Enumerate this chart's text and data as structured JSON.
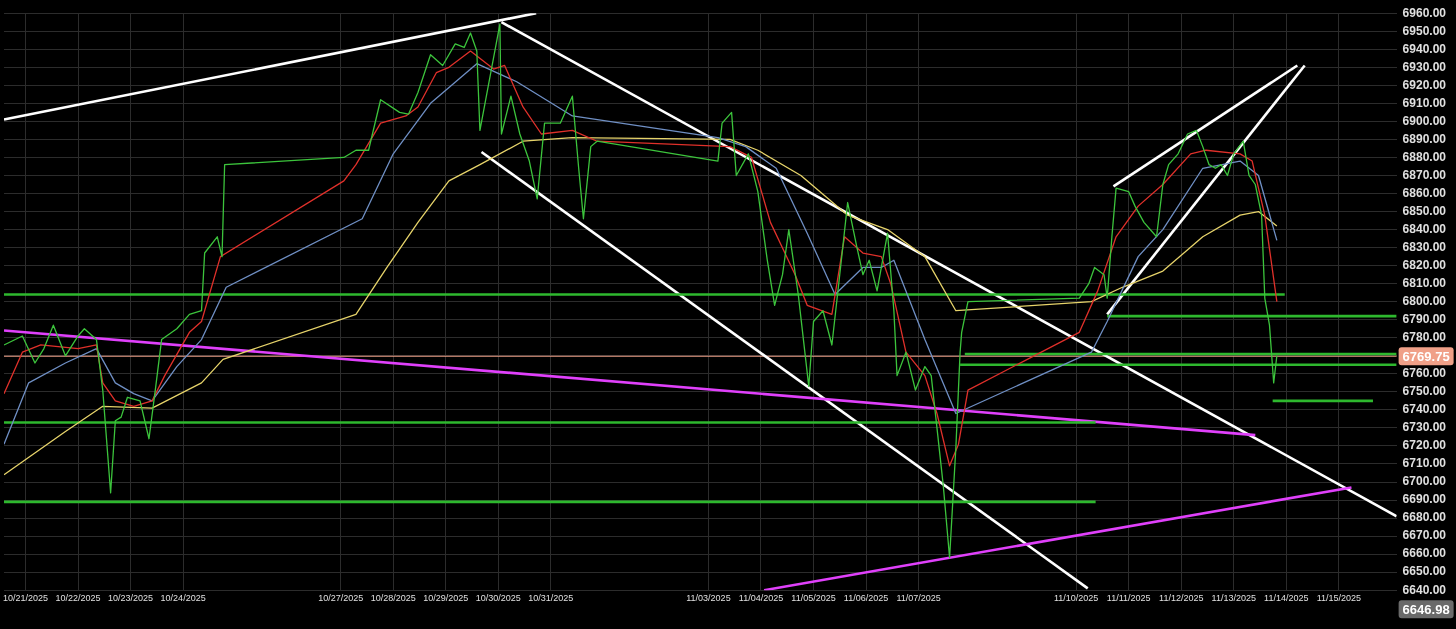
{
  "chart_data": {
    "type": "line",
    "xlim": [
      "2025-10-20T14:10",
      "2025-11-16T02:24"
    ],
    "ylim": [
      6640,
      6960
    ],
    "xticks": [
      {
        "value": "2025-10-21",
        "label": "10/21/2025"
      },
      {
        "value": "2025-10-22",
        "label": "10/22/2025"
      },
      {
        "value": "2025-10-23",
        "label": "10/23/2025"
      },
      {
        "value": "2025-10-24",
        "label": "10/24/2025"
      },
      {
        "value": "2025-10-27",
        "label": "10/27/2025"
      },
      {
        "value": "2025-10-28",
        "label": "10/28/2025"
      },
      {
        "value": "2025-10-29",
        "label": "10/29/2025"
      },
      {
        "value": "2025-10-30",
        "label": "10/30/2025"
      },
      {
        "value": "2025-10-31",
        "label": "10/31/2025"
      },
      {
        "value": "2025-11-03",
        "label": "11/03/2025"
      },
      {
        "value": "2025-11-04",
        "label": "11/04/2025"
      },
      {
        "value": "2025-11-05",
        "label": "11/05/2025"
      },
      {
        "value": "2025-11-06",
        "label": "11/06/2025"
      },
      {
        "value": "2025-11-07",
        "label": "11/07/2025"
      },
      {
        "value": "2025-11-10",
        "label": "11/10/2025"
      },
      {
        "value": "2025-11-11",
        "label": "11/11/2025"
      },
      {
        "value": "2025-11-12",
        "label": "11/12/2025"
      },
      {
        "value": "2025-11-13",
        "label": "11/13/2025"
      },
      {
        "value": "2025-11-14",
        "label": "11/14/2025"
      },
      {
        "value": "2025-11-15",
        "label": "11/15/2025"
      }
    ],
    "yticks": [
      {
        "value": 6640,
        "label": "6640.00"
      },
      {
        "value": 6650,
        "label": "6650.00"
      },
      {
        "value": 6660,
        "label": "6660.00"
      },
      {
        "value": 6670,
        "label": "6670.00"
      },
      {
        "value": 6680,
        "label": "6680.00"
      },
      {
        "value": 6690,
        "label": "6690.00"
      },
      {
        "value": 6700,
        "label": "6700.00"
      },
      {
        "value": 6710,
        "label": "6710.00"
      },
      {
        "value": 6720,
        "label": "6720.00"
      },
      {
        "value": 6730,
        "label": "6730.00"
      },
      {
        "value": 6740,
        "label": "6740.00"
      },
      {
        "value": 6750,
        "label": "6750.00"
      },
      {
        "value": 6760,
        "label": "6760.00"
      },
      {
        "value": 6770,
        "label": null
      },
      {
        "value": 6780,
        "label": "6780.00"
      },
      {
        "value": 6790,
        "label": "6790.00"
      },
      {
        "value": 6800,
        "label": "6800.00"
      },
      {
        "value": 6810,
        "label": "6810.00"
      },
      {
        "value": 6820,
        "label": "6820.00"
      },
      {
        "value": 6830,
        "label": "6830.00"
      },
      {
        "value": 6840,
        "label": "6840.00"
      },
      {
        "value": 6850,
        "label": "6850.00"
      },
      {
        "value": 6860,
        "label": "6860.00"
      },
      {
        "value": 6870,
        "label": "6870.00"
      },
      {
        "value": 6880,
        "label": "6880.00"
      },
      {
        "value": 6890,
        "label": "6890.00"
      },
      {
        "value": 6900,
        "label": "6900.00"
      },
      {
        "value": 6910,
        "label": "6910.00"
      },
      {
        "value": 6920,
        "label": "6920.00"
      },
      {
        "value": 6930,
        "label": "6930.00"
      },
      {
        "value": 6940,
        "label": "6940.00"
      },
      {
        "value": 6950,
        "label": "6950.00"
      },
      {
        "value": 6960,
        "label": "6960.00"
      }
    ],
    "grid": true,
    "marker": "none",
    "line_style": "solid",
    "series": [
      {
        "color": "#ffffff",
        "x": [
          "2025-10-20T14:10",
          "2025-10-30T17:17"
        ],
        "values": [
          6901,
          6960
        ]
      },
      {
        "color": "#ffffff",
        "x": [
          "2025-10-30T01:26",
          "2025-11-16T02:24"
        ],
        "values": [
          6955,
          6681
        ]
      },
      {
        "color": "#ffffff",
        "x": [
          "2025-10-29T16:19",
          "2025-11-10T05:17"
        ],
        "values": [
          6883,
          6641
        ]
      },
      {
        "color": "#ffffff",
        "x": [
          "2025-11-10T14:10",
          "2025-11-14T08:24"
        ],
        "values": [
          6793,
          6931
        ]
      },
      {
        "color": "#ffffff",
        "x": [
          "2025-11-10T17:02",
          "2025-11-14T05:02"
        ],
        "values": [
          6864,
          6931
        ]
      },
      {
        "color": "#e040fb",
        "x": [
          "2025-10-20T14:10",
          "2025-11-13T09:50"
        ],
        "values": [
          6784,
          6726
        ]
      },
      {
        "color": "#e040fb",
        "x": [
          "2025-11-04T01:26",
          "2025-11-15T05:46"
        ],
        "values": [
          6640,
          6697
        ]
      },
      {
        "color": "#2eb82e",
        "x": [
          "2025-10-20T14:10",
          "2025-11-13T23:17"
        ],
        "values": [
          6804,
          6804
        ]
      },
      {
        "color": "#2eb82e",
        "x": [
          "2025-10-20T14:10",
          "2025-11-10T08:53"
        ],
        "values": [
          6733,
          6733
        ]
      },
      {
        "color": "#2eb82e",
        "x": [
          "2025-10-20T14:10",
          "2025-11-10T08:53"
        ],
        "values": [
          6689,
          6689
        ]
      },
      {
        "color": "#2eb82e",
        "x": [
          "2025-11-10T14:10",
          "2025-11-16T02:24"
        ],
        "values": [
          6792,
          6792
        ]
      },
      {
        "color": "#2eb82e",
        "x": [
          "2025-11-07T21:07",
          "2025-11-16T02:24"
        ],
        "values": [
          6771,
          6771
        ]
      },
      {
        "color": "#2eb82e",
        "x": [
          "2025-11-07T18:58",
          "2025-11-16T02:24"
        ],
        "values": [
          6765,
          6765
        ]
      },
      {
        "color": "#2eb82e",
        "x": [
          "2025-11-13T17:46",
          "2025-11-15T15:36"
        ],
        "values": [
          6745,
          6745
        ]
      },
      {
        "color": "#e6d36a",
        "x": [
          "2025-10-20T14:10",
          "2025-10-21T18:14",
          "2025-10-22T11:17",
          "2025-10-23T09:50",
          "2025-10-24T08:24",
          "2025-10-24T18:14",
          "2025-10-27T06:58",
          "2025-10-27T21:07",
          "2025-10-28T11:17",
          "2025-10-29T01:26",
          "2025-10-29T15:36",
          "2025-10-30T11:17",
          "2025-10-31T09:50",
          "2025-11-03T09:50",
          "2025-11-03T22:34",
          "2025-11-04T18:14",
          "2025-11-05T15:36",
          "2025-11-06T09:50",
          "2025-11-07T02:53",
          "2025-11-07T17:02",
          "2025-11-10T06:58",
          "2025-11-10T21:07",
          "2025-11-11T15:36",
          "2025-11-12T09:50",
          "2025-11-13T02:53",
          "2025-11-13T11:17",
          "2025-11-13T19:41"
        ],
        "values": [
          6704,
          6728,
          6742,
          6741,
          6755,
          6768,
          6793,
          6819,
          6844,
          6867,
          6876,
          6889,
          6891,
          6890,
          6884,
          6870,
          6848,
          6840,
          6825,
          6795,
          6800,
          6808,
          6817,
          6836,
          6848,
          6850,
          6842
        ]
      },
      {
        "color": "#6f8fc4",
        "x": [
          "2025-10-20T14:10",
          "2025-10-21T01:26",
          "2025-10-21T18:14",
          "2025-10-22T08:24",
          "2025-10-22T17:02",
          "2025-10-23T01:26",
          "2025-10-23T09:50",
          "2025-10-23T21:07",
          "2025-10-24T08:24",
          "2025-10-24T19:41",
          "2025-10-27T09:50",
          "2025-10-28T00:00",
          "2025-10-28T17:02",
          "2025-10-29T14:10",
          "2025-10-30T08:24",
          "2025-10-31T09:50",
          "2025-11-03T04:19",
          "2025-11-03T17:02",
          "2025-11-04T06:58",
          "2025-11-04T21:07",
          "2025-11-05T09:50",
          "2025-11-05T22:34",
          "2025-11-06T06:58",
          "2025-11-06T12:43",
          "2025-11-07T02:53",
          "2025-11-07T17:02",
          "2025-11-10T06:58",
          "2025-11-10T14:10",
          "2025-11-11T04:19",
          "2025-11-11T15:36",
          "2025-11-12T09:50",
          "2025-11-13T02:53",
          "2025-11-13T11:17",
          "2025-11-13T19:41"
        ],
        "values": [
          6721,
          6755,
          6766,
          6774,
          6755,
          6749,
          6745,
          6764,
          6779,
          6808,
          6846,
          6882,
          6910,
          6932,
          6922,
          6903,
          6891,
          6886,
          6874,
          6838,
          6804,
          6819,
          6819,
          6823,
          6779,
          6738,
          6772,
          6789,
          6825,
          6840,
          6874,
          6878,
          6870,
          6834
        ]
      },
      {
        "color": "#e0302a",
        "x": [
          "2025-10-20T14:10",
          "2025-10-20T22:34",
          "2025-10-21T06:58",
          "2025-10-22T00:00",
          "2025-10-22T08:24",
          "2025-10-22T11:17",
          "2025-10-22T17:02",
          "2025-10-23T01:26",
          "2025-10-23T09:50",
          "2025-10-23T15:36",
          "2025-10-24T02:53",
          "2025-10-24T08:24",
          "2025-10-24T17:02",
          "2025-10-27T01:26",
          "2025-10-27T06:58",
          "2025-10-27T18:14",
          "2025-10-28T05:46",
          "2025-10-28T11:17",
          "2025-10-28T19:41",
          "2025-10-29T01:26",
          "2025-10-29T11:17",
          "2025-10-29T21:50",
          "2025-10-30T02:53",
          "2025-10-30T11:17",
          "2025-10-30T19:41",
          "2025-10-31T09:50",
          "2025-10-31T21:07",
          "2025-11-03T09:50",
          "2025-11-03T19:41",
          "2025-11-04T04:19",
          "2025-11-04T15:36",
          "2025-11-04T21:07",
          "2025-11-05T08:24",
          "2025-11-05T14:10",
          "2025-11-05T22:34",
          "2025-11-06T06:58",
          "2025-11-06T11:17",
          "2025-11-06T18:14",
          "2025-11-07T02:53",
          "2025-11-07T08:24",
          "2025-11-07T14:10",
          "2025-11-07T18:14",
          "2025-11-07T22:34",
          "2025-11-10T01:26",
          "2025-11-10T09:50",
          "2025-11-10T18:14",
          "2025-11-11T04:19",
          "2025-11-11T15:36",
          "2025-11-12T04:19",
          "2025-11-12T11:17",
          "2025-11-13T02:53",
          "2025-11-13T08:24",
          "2025-11-13T14:10",
          "2025-11-13T19:41"
        ],
        "values": [
          6749,
          6772,
          6776,
          6774,
          6776,
          6755,
          6745,
          6742,
          6745,
          6759,
          6783,
          6789,
          6825,
          6867,
          6876,
          6899,
          6903,
          6908,
          6927,
          6930,
          6939,
          6929,
          6931,
          6908,
          6893,
          6895,
          6889,
          6886,
          6880,
          6844,
          6815,
          6798,
          6793,
          6836,
          6827,
          6825,
          6810,
          6772,
          6759,
          6738,
          6709,
          6721,
          6751,
          6783,
          6806,
          6836,
          6853,
          6865,
          6882,
          6884,
          6882,
          6878,
          6848,
          6800
        ]
      },
      {
        "color": "#3cc43c",
        "x": [
          "2025-10-20T14:10",
          "2025-10-20T22:34",
          "2025-10-21T04:19",
          "2025-10-21T08:24",
          "2025-10-21T12:43",
          "2025-10-21T18:14",
          "2025-10-22T00:00",
          "2025-10-22T02:53",
          "2025-10-22T08:24",
          "2025-10-22T11:17",
          "2025-10-22T14:53",
          "2025-10-22T17:02",
          "2025-10-22T19:41",
          "2025-10-22T22:34",
          "2025-10-23T04:19",
          "2025-10-23T08:24",
          "2025-10-23T11:17",
          "2025-10-23T14:10",
          "2025-10-23T21:07",
          "2025-10-24T02:53",
          "2025-10-24T08:24",
          "2025-10-24T09:50",
          "2025-10-24T15:36",
          "2025-10-24T17:46",
          "2025-10-24T18:58",
          "2025-10-27T01:26",
          "2025-10-27T06:58",
          "2025-10-27T12:43",
          "2025-10-27T18:14",
          "2025-10-28T02:53",
          "2025-10-28T06:58",
          "2025-10-28T11:17",
          "2025-10-28T17:02",
          "2025-10-28T22:34",
          "2025-10-29T04:19",
          "2025-10-29T08:24",
          "2025-10-29T11:17",
          "2025-10-29T14:10",
          "2025-10-29T15:36",
          "2025-10-30T00:43",
          "2025-10-30T01:26",
          "2025-10-30T05:46",
          "2025-10-30T09:50",
          "2025-10-30T14:10",
          "2025-10-30T17:46",
          "2025-10-30T21:07",
          "2025-10-31T04:19",
          "2025-10-31T09:50",
          "2025-10-31T12:43",
          "2025-10-31T14:53",
          "2025-10-31T18:14",
          "2025-10-31T21:07",
          "2025-11-03T04:19",
          "2025-11-03T06:14",
          "2025-11-03T10:34",
          "2025-11-03T12:43",
          "2025-11-03T18:14",
          "2025-11-03T22:34",
          "2025-11-04T02:53",
          "2025-11-04T06:14",
          "2025-11-04T09:50",
          "2025-11-04T12:43",
          "2025-11-04T17:02",
          "2025-11-04T21:50",
          "2025-11-05T00:00",
          "2025-11-05T04:19",
          "2025-11-05T08:24",
          "2025-11-05T12:43",
          "2025-11-05T15:36",
          "2025-11-05T19:41",
          "2025-11-05T22:34",
          "2025-11-06T01:26",
          "2025-11-06T05:02",
          "2025-11-06T09:50",
          "2025-11-06T12:43",
          "2025-11-06T14:10",
          "2025-11-06T18:14",
          "2025-11-06T22:34",
          "2025-11-07T02:53",
          "2025-11-07T05:46",
          "2025-11-07T08:24",
          "2025-11-07T11:17",
          "2025-11-07T14:10",
          "2025-11-07T17:02",
          "2025-11-07T18:58",
          "2025-11-07T19:41",
          "2025-11-07T22:34",
          "2025-11-10T01:26",
          "2025-11-10T05:46",
          "2025-11-10T08:24",
          "2025-11-10T12:43",
          "2025-11-10T14:10",
          "2025-11-10T16:19",
          "2025-11-10T18:14",
          "2025-11-11T00:00",
          "2025-11-11T02:53",
          "2025-11-11T06:58",
          "2025-11-11T12:43",
          "2025-11-11T15:36",
          "2025-11-11T18:14",
          "2025-11-11T22:34",
          "2025-11-12T02:53",
          "2025-11-12T06:58",
          "2025-11-12T09:50",
          "2025-11-12T12:43",
          "2025-11-12T15:36",
          "2025-11-12T18:14",
          "2025-11-12T21:07",
          "2025-11-13T00:00",
          "2025-11-13T04:19",
          "2025-11-13T06:58",
          "2025-11-13T09:50",
          "2025-11-13T12:43",
          "2025-11-13T14:10",
          "2025-11-13T16:19",
          "2025-11-13T18:14",
          "2025-11-13T19:41"
        ],
        "values": [
          6776,
          6781,
          6766,
          6774,
          6787,
          6770,
          6781,
          6785,
          6779,
          6751,
          6694,
          6734,
          6736,
          6747,
          6745,
          6724,
          6751,
          6779,
          6785,
          6793,
          6795,
          6827,
          6836,
          6825,
          6876,
          6880,
          6884,
          6884,
          6912,
          6905,
          6904,
          6916,
          6937,
          6931,
          6943,
          6941,
          6949,
          6939,
          6895,
          6954,
          6893,
          6914,
          6893,
          6878,
          6857,
          6899,
          6899,
          6914,
          6874,
          6846,
          6886,
          6889,
          6878,
          6899,
          6905,
          6870,
          6882,
          6861,
          6823,
          6798,
          6815,
          6840,
          6804,
          6753,
          6789,
          6795,
          6776,
          6823,
          6855,
          6831,
          6815,
          6823,
          6806,
          6838,
          6795,
          6759,
          6772,
          6751,
          6764,
          6759,
          6730,
          6698,
          6658,
          6719,
          6772,
          6783,
          6800,
          6802,
          6810,
          6819,
          6815,
          6802,
          6836,
          6863,
          6861,
          6853,
          6844,
          6836,
          6865,
          6876,
          6882,
          6893,
          6895,
          6886,
          6876,
          6874,
          6876,
          6870,
          6882,
          6889,
          6870,
          6865,
          6848,
          6802,
          6787,
          6755,
          6770
        ]
      }
    ],
    "ref_lines": [
      {
        "axis": "y",
        "value": 6769.75,
        "label": "6769.75",
        "color": "#f0a088"
      }
    ],
    "annotations": [
      "6646.98"
    ]
  }
}
